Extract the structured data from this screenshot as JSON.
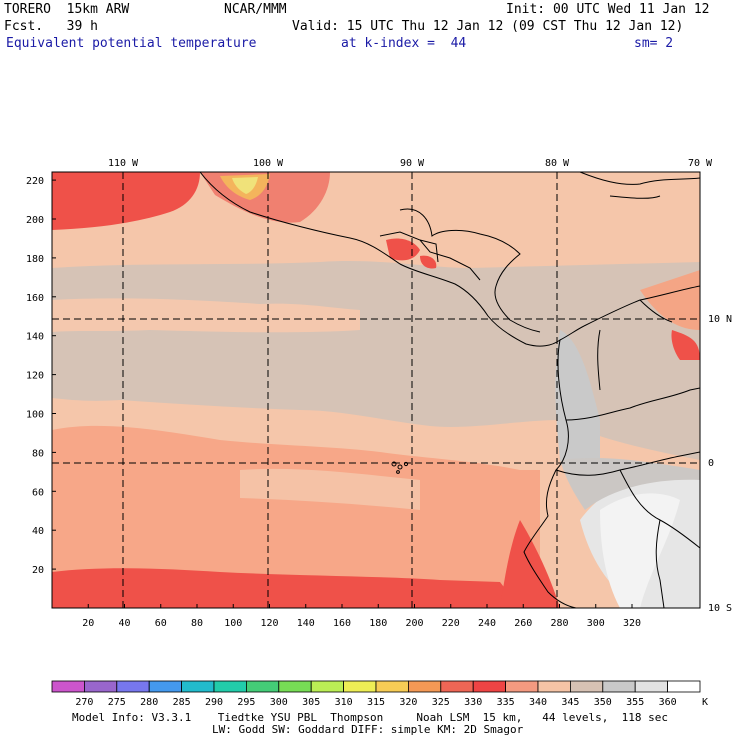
{
  "header": {
    "model": "TORERO  15km ARW",
    "center": "NCAR/MMM",
    "init": "Init: 00 UTC Wed 11 Jan 12",
    "fcst": "Fcst.   39 h",
    "valid": "Valid: 15 UTC Thu 12 Jan 12 (09 CST Thu 12 Jan 12)",
    "field": "Equivalent potential temperature",
    "level": "at k-index =  44",
    "smooth": "sm= 2"
  },
  "top_lon_labels": [
    "110 W",
    "100 W",
    "90 W",
    "80 W",
    "70 W"
  ],
  "right_lat_labels": [
    "10 N",
    "0",
    "10 S"
  ],
  "left_grid_ticks": [
    "220",
    "200",
    "180",
    "160",
    "140",
    "120",
    "100",
    "80",
    "60",
    "40",
    "20"
  ],
  "bottom_grid_ticks": [
    "20",
    "40",
    "60",
    "80",
    "100",
    "120",
    "140",
    "160",
    "180",
    "200",
    "220",
    "240",
    "260",
    "280",
    "300",
    "320"
  ],
  "colorbar": {
    "labels": [
      "270",
      "275",
      "280",
      "285",
      "290",
      "295",
      "300",
      "305",
      "310",
      "315",
      "320",
      "325",
      "330",
      "335",
      "340",
      "345",
      "350",
      "355",
      "360"
    ],
    "unit": "K",
    "colors": [
      "#cc55cc",
      "#9966cc",
      "#7777ee",
      "#4499ee",
      "#22bbcc",
      "#22ccaa",
      "#44cc77",
      "#77dd55",
      "#bbee55",
      "#eeee55",
      "#f7cc55",
      "#f49955",
      "#ee6655",
      "#ee4444",
      "#f49a80",
      "#f5c4a6",
      "#d7c2b4",
      "#c9c9c9",
      "#e2e2e2",
      "#ffffff"
    ]
  },
  "footer": {
    "line1": "Model Info: V3.3.1    Tiedtke YSU PBL  Thompson     Noah LSM  15 km,   44 levels,  118 sec",
    "line2": "LW: Godd SW: Goddard DIFF: simple KM: 2D Smagor"
  }
}
